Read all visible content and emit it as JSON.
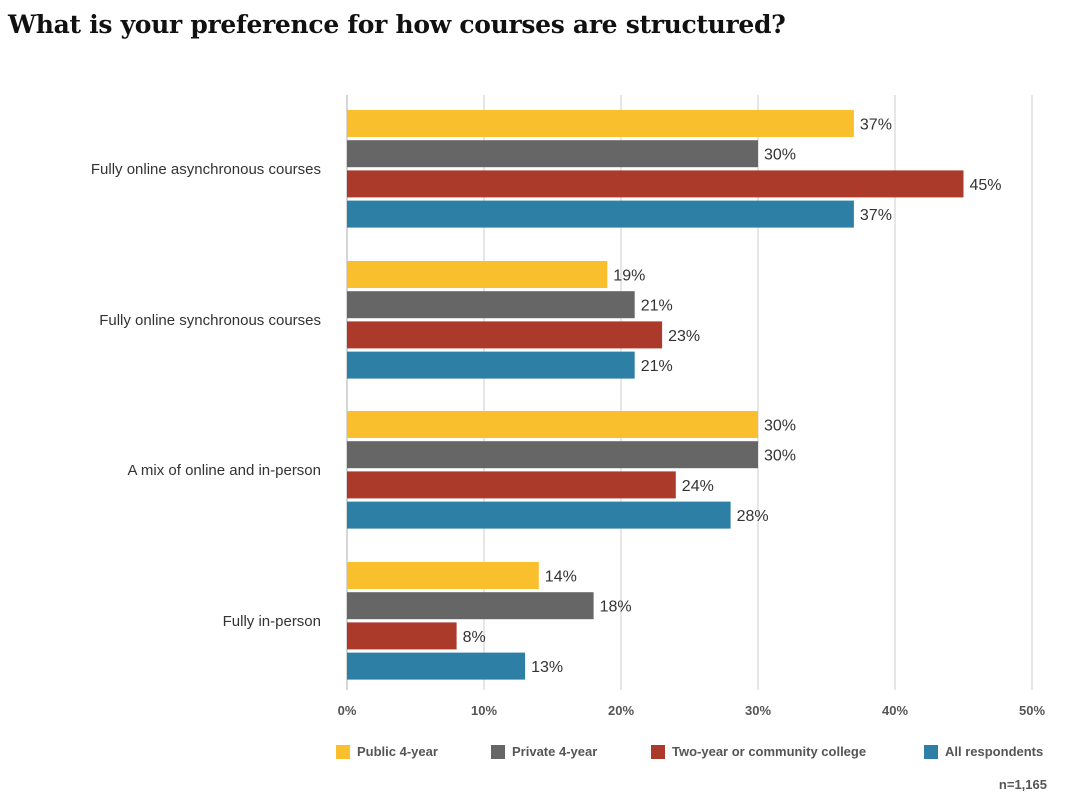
{
  "title": "What is your preference for how courses are structured?",
  "note": "n=1,165",
  "chart_data": {
    "type": "bar",
    "orientation": "horizontal",
    "title": "What is your preference for how courses are structured?",
    "categories": [
      "Fully online asynchronous courses",
      "Fully online synchronous courses",
      "A mix of online and in-person",
      "Fully in-person"
    ],
    "series": [
      {
        "name": "Public 4-year",
        "color": "#f9bf2d",
        "values": [
          37,
          19,
          30,
          14
        ]
      },
      {
        "name": "Private 4-year",
        "color": "#666666",
        "values": [
          30,
          21,
          30,
          18
        ]
      },
      {
        "name": "Two-year or community college",
        "color": "#ab3a2b",
        "values": [
          45,
          23,
          24,
          8
        ]
      },
      {
        "name": "All respondents",
        "color": "#2e7fa6",
        "values": [
          37,
          21,
          28,
          13
        ]
      }
    ],
    "value_suffix": "%",
    "xlim": [
      0,
      50
    ],
    "xticks": [
      "0%",
      "10%",
      "20%",
      "30%",
      "40%",
      "50%"
    ],
    "grid": true,
    "legend_position": "bottom"
  }
}
